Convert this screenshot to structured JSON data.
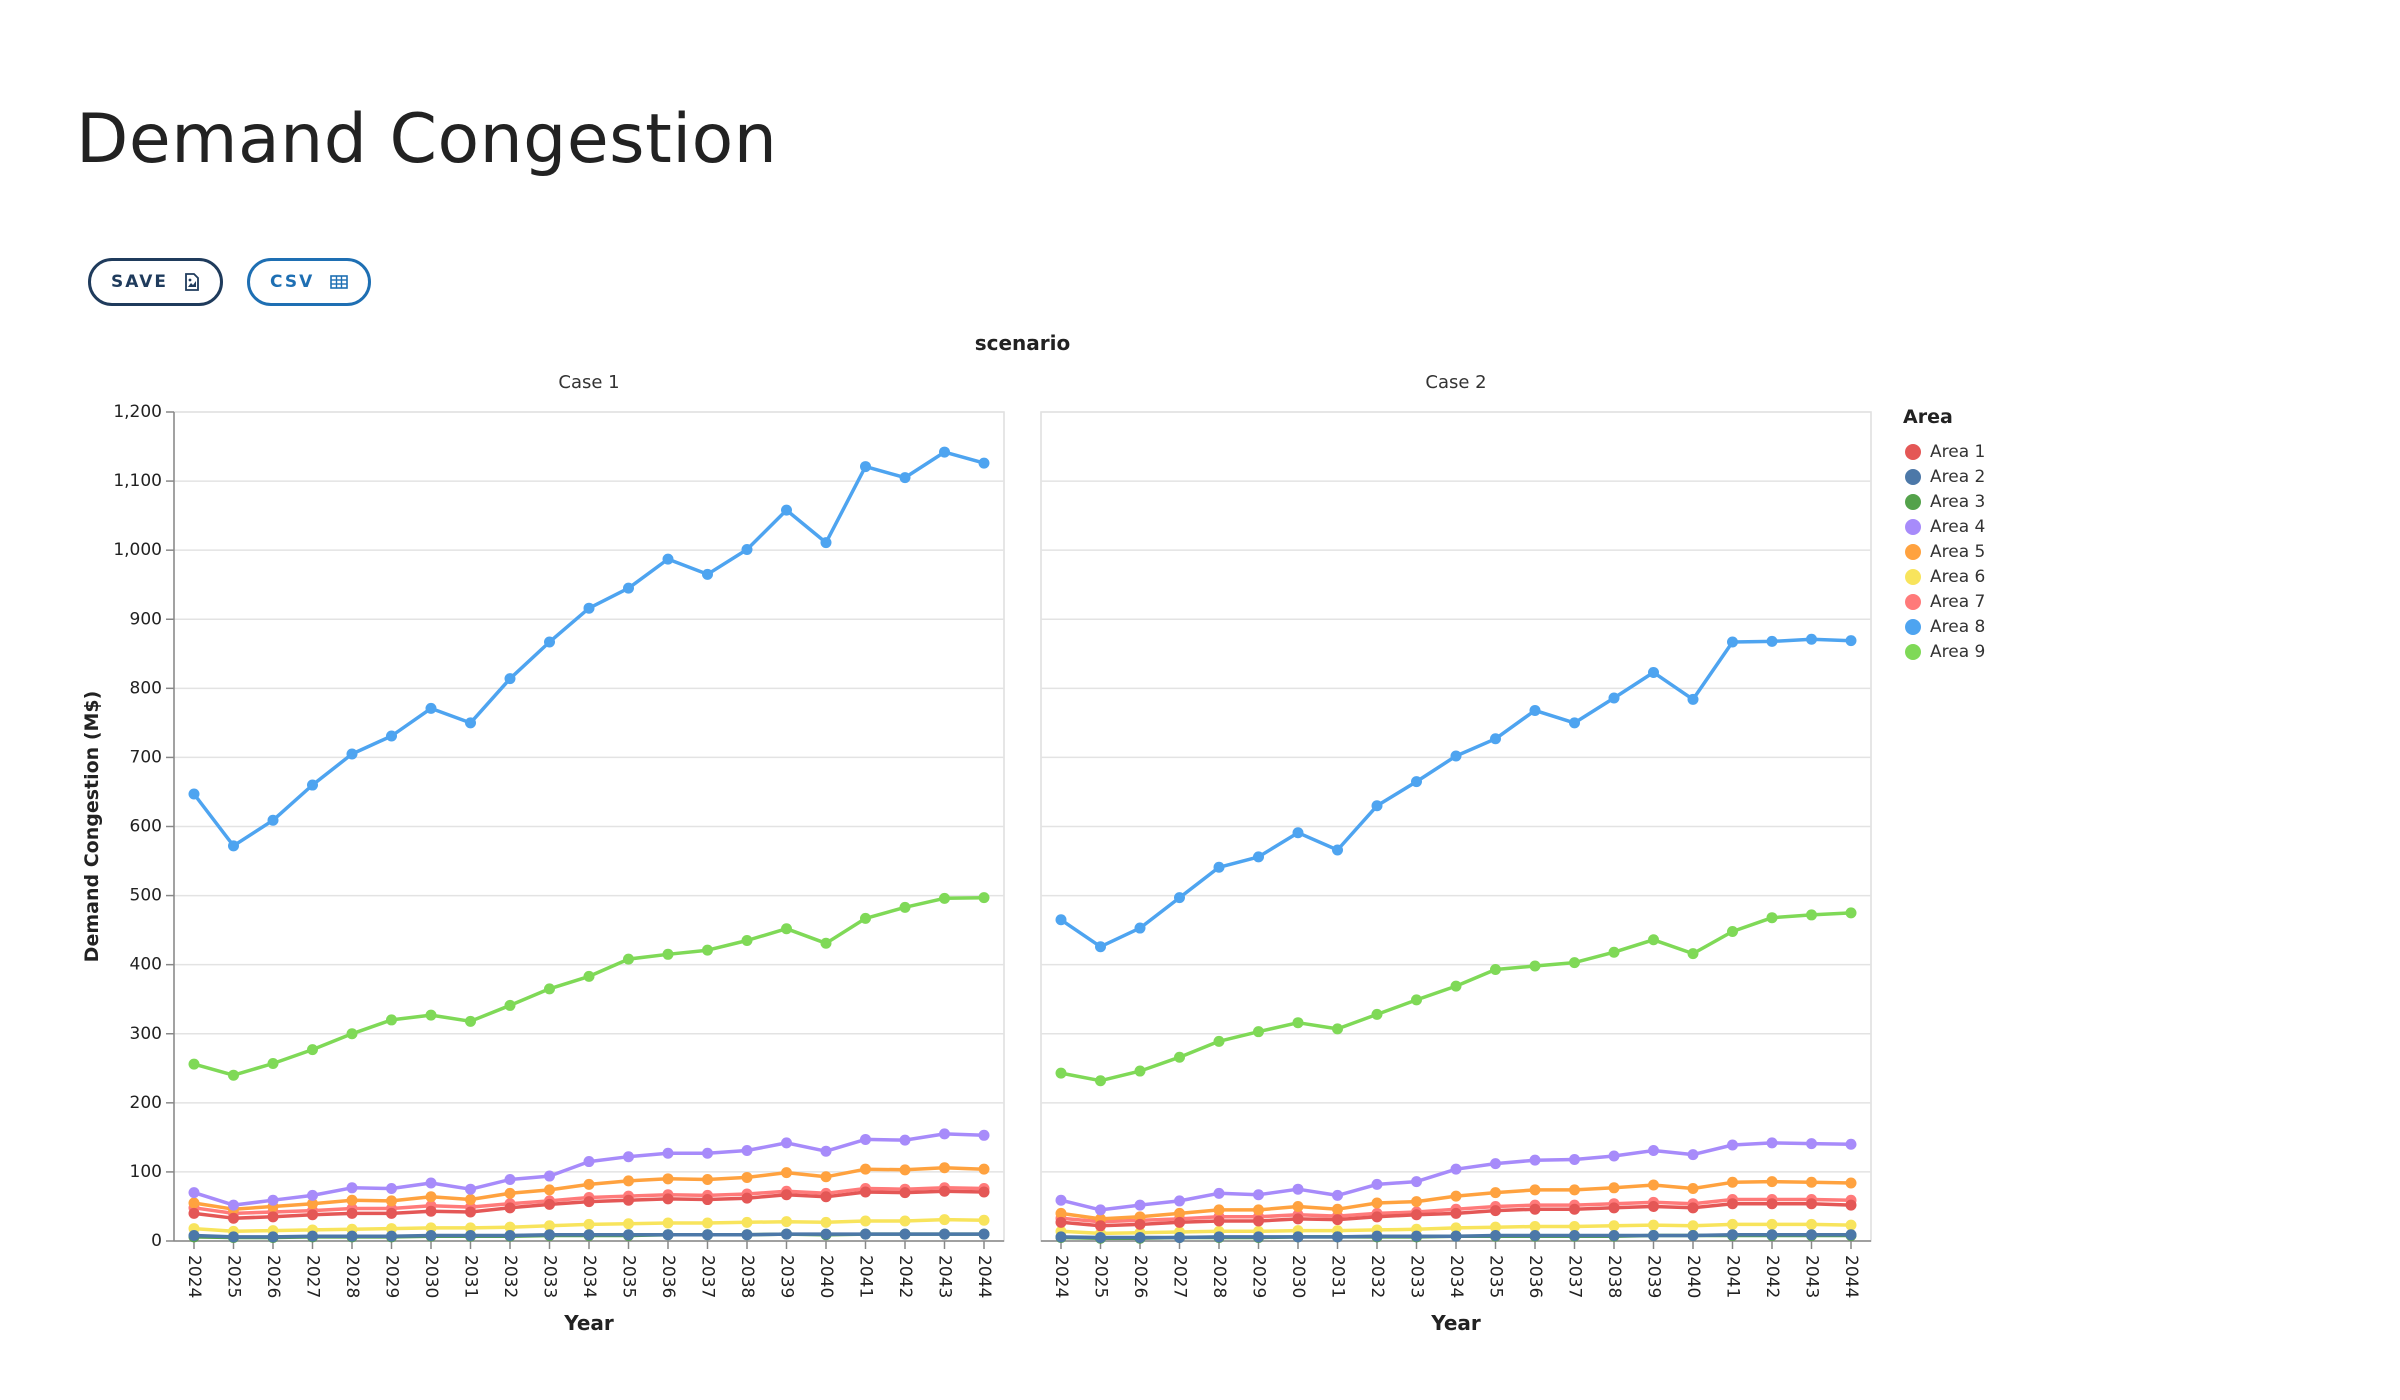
{
  "page": {
    "title": "Demand Congestion"
  },
  "toolbar": {
    "save_label": "SAVE",
    "save_icon": "image-file-icon",
    "csv_label": "CSV",
    "csv_icon": "table-icon"
  },
  "chart_data": {
    "type": "line",
    "facet_title": "scenario",
    "ylabel": "Demand Congestion (M$)",
    "xlabel": "Year",
    "ylim": [
      0,
      1200
    ],
    "yticks": [
      0,
      100,
      200,
      300,
      400,
      500,
      600,
      700,
      800,
      900,
      1000,
      1100,
      1200
    ],
    "grid": true,
    "legend_title": "Area",
    "legend_position": "right",
    "categories": [
      "2024",
      "2025",
      "2026",
      "2027",
      "2028",
      "2029",
      "2030",
      "2031",
      "2032",
      "2033",
      "2034",
      "2035",
      "2036",
      "2037",
      "2038",
      "2039",
      "2040",
      "2041",
      "2042",
      "2043",
      "2044"
    ],
    "series_meta": [
      {
        "name": "Area 1",
        "color": "#e45756"
      },
      {
        "name": "Area 2",
        "color": "#4c78a8"
      },
      {
        "name": "Area 3",
        "color": "#54a24b"
      },
      {
        "name": "Area 4",
        "color": "#a78bfa"
      },
      {
        "name": "Area 5",
        "color": "#ffa23f"
      },
      {
        "name": "Area 6",
        "color": "#f8e45c"
      },
      {
        "name": "Area 7",
        "color": "#ff7a7a"
      },
      {
        "name": "Area 8",
        "color": "#4ea4f0"
      },
      {
        "name": "Area 9",
        "color": "#7fd957"
      }
    ],
    "panels": [
      {
        "title": "Case 1",
        "series": [
          {
            "name": "Area 1",
            "values": [
              40,
              33,
              35,
              38,
              40,
              40,
              43,
              42,
              48,
              53,
              57,
              59,
              61,
              60,
              62,
              67,
              64,
              71,
              70,
              72,
              71
            ]
          },
          {
            "name": "Area 2",
            "values": [
              8,
              6,
              6,
              7,
              7,
              7,
              8,
              8,
              8,
              9,
              9,
              9,
              9,
              9,
              9,
              10,
              10,
              10,
              10,
              10,
              10
            ]
          },
          {
            "name": "Area 3",
            "values": [
              6,
              5,
              5,
              6,
              6,
              6,
              7,
              7,
              7,
              8,
              8,
              8,
              9,
              9,
              9,
              10,
              9,
              10,
              10,
              10,
              10
            ]
          },
          {
            "name": "Area 4",
            "values": [
              70,
              52,
              59,
              66,
              77,
              76,
              84,
              75,
              89,
              94,
              115,
              122,
              127,
              127,
              131,
              142,
              130,
              147,
              146,
              155,
              153
            ]
          },
          {
            "name": "Area 5",
            "values": [
              55,
              46,
              50,
              54,
              59,
              58,
              64,
              60,
              69,
              74,
              82,
              87,
              90,
              89,
              92,
              99,
              93,
              104,
              103,
              106,
              104
            ]
          },
          {
            "name": "Area 6",
            "values": [
              18,
              14,
              15,
              16,
              17,
              18,
              19,
              19,
              20,
              22,
              24,
              25,
              26,
              26,
              27,
              28,
              27,
              29,
              29,
              31,
              30
            ]
          },
          {
            "name": "Area 7",
            "values": [
              48,
              40,
              42,
              44,
              47,
              47,
              51,
              49,
              54,
              58,
              63,
              65,
              67,
              66,
              68,
              72,
              69,
              76,
              75,
              77,
              76
            ]
          },
          {
            "name": "Area 8",
            "values": [
              647,
              572,
              609,
              660,
              705,
              731,
              771,
              750,
              814,
              867,
              916,
              945,
              987,
              965,
              1001,
              1058,
              1011,
              1121,
              1105,
              1142,
              1126
            ]
          },
          {
            "name": "Area 9",
            "values": [
              256,
              240,
              257,
              277,
              300,
              320,
              327,
              318,
              341,
              365,
              383,
              408,
              415,
              421,
              435,
              452,
              431,
              467,
              483,
              496,
              497
            ]
          }
        ]
      },
      {
        "title": "Case 2",
        "series": [
          {
            "name": "Area 1",
            "values": [
              27,
              22,
              24,
              27,
              29,
              29,
              32,
              31,
              35,
              38,
              40,
              44,
              46,
              46,
              48,
              50,
              48,
              54,
              54,
              54,
              52
            ]
          },
          {
            "name": "Area 2",
            "values": [
              6,
              5,
              5,
              5,
              6,
              6,
              6,
              6,
              7,
              7,
              7,
              8,
              8,
              8,
              8,
              8,
              8,
              9,
              9,
              9,
              9
            ]
          },
          {
            "name": "Area 3",
            "values": [
              5,
              4,
              4,
              5,
              5,
              5,
              6,
              6,
              6,
              6,
              7,
              7,
              7,
              7,
              7,
              8,
              8,
              8,
              8,
              8,
              8
            ]
          },
          {
            "name": "Area 4",
            "values": [
              59,
              45,
              52,
              58,
              69,
              67,
              75,
              66,
              82,
              86,
              104,
              112,
              117,
              118,
              123,
              131,
              125,
              139,
              142,
              141,
              140
            ]
          },
          {
            "name": "Area 5",
            "values": [
              40,
              32,
              35,
              40,
              45,
              45,
              50,
              46,
              55,
              57,
              65,
              70,
              74,
              74,
              77,
              81,
              76,
              85,
              86,
              85,
              84
            ]
          },
          {
            "name": "Area 6",
            "values": [
              14,
              11,
              12,
              13,
              14,
              14,
              15,
              15,
              16,
              17,
              19,
              20,
              21,
              21,
              22,
              23,
              22,
              24,
              24,
              24,
              23
            ]
          },
          {
            "name": "Area 7",
            "values": [
              33,
              28,
              30,
              32,
              35,
              35,
              38,
              36,
              40,
              42,
              46,
              50,
              52,
              52,
              54,
              56,
              54,
              60,
              60,
              60,
              59
            ]
          },
          {
            "name": "Area 8",
            "values": [
              465,
              426,
              453,
              497,
              541,
              556,
              591,
              566,
              630,
              665,
              702,
              727,
              768,
              750,
              786,
              823,
              784,
              867,
              868,
              871,
              869
            ]
          },
          {
            "name": "Area 9",
            "values": [
              243,
              232,
              246,
              266,
              289,
              303,
              316,
              307,
              328,
              349,
              369,
              393,
              398,
              403,
              418,
              436,
              416,
              448,
              468,
              472,
              475
            ]
          }
        ]
      }
    ]
  }
}
